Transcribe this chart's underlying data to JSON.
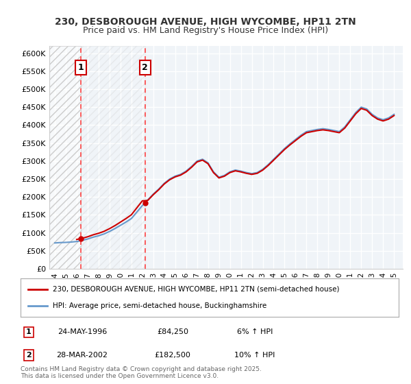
{
  "title1": "230, DESBOROUGH AVENUE, HIGH WYCOMBE, HP11 2TN",
  "title2": "Price paid vs. HM Land Registry's House Price Index (HPI)",
  "legend_line1": "230, DESBOROUGH AVENUE, HIGH WYCOMBE, HP11 2TN (semi-detached house)",
  "legend_line2": "HPI: Average price, semi-detached house, Buckinghamshire",
  "annotation1_label": "1",
  "annotation1_date": "24-MAY-1996",
  "annotation1_price": "£84,250",
  "annotation1_hpi": "6% ↑ HPI",
  "annotation1_year": 1996.4,
  "annotation1_value": 84250,
  "annotation2_label": "2",
  "annotation2_date": "28-MAR-2002",
  "annotation2_price": "£182,500",
  "annotation2_hpi": "10% ↑ HPI",
  "annotation2_year": 2002.25,
  "annotation2_value": 182500,
  "sale_color": "#cc0000",
  "hpi_color": "#6699cc",
  "vline_color": "#ff4444",
  "background_color": "#ffffff",
  "plot_bg_color": "#f0f4f8",
  "grid_color": "#ffffff",
  "copyright_text": "Contains HM Land Registry data © Crown copyright and database right 2025.\nThis data is licensed under the Open Government Licence v3.0.",
  "ylim": [
    0,
    620000
  ],
  "xlim_start": 1993.5,
  "xlim_end": 2025.8,
  "ytick_values": [
    0,
    50000,
    100000,
    150000,
    200000,
    250000,
    300000,
    350000,
    400000,
    450000,
    500000,
    550000,
    600000
  ],
  "ytick_labels": [
    "£0",
    "£50K",
    "£100K",
    "£150K",
    "£200K",
    "£250K",
    "£300K",
    "£350K",
    "£400K",
    "£450K",
    "£500K",
    "£550K",
    "£600K"
  ],
  "xtick_years": [
    1994,
    1995,
    1996,
    1997,
    1998,
    1999,
    2000,
    2001,
    2002,
    2003,
    2004,
    2005,
    2006,
    2007,
    2008,
    2009,
    2010,
    2011,
    2012,
    2013,
    2014,
    2015,
    2016,
    2017,
    2018,
    2019,
    2020,
    2021,
    2022,
    2023,
    2024,
    2025
  ]
}
